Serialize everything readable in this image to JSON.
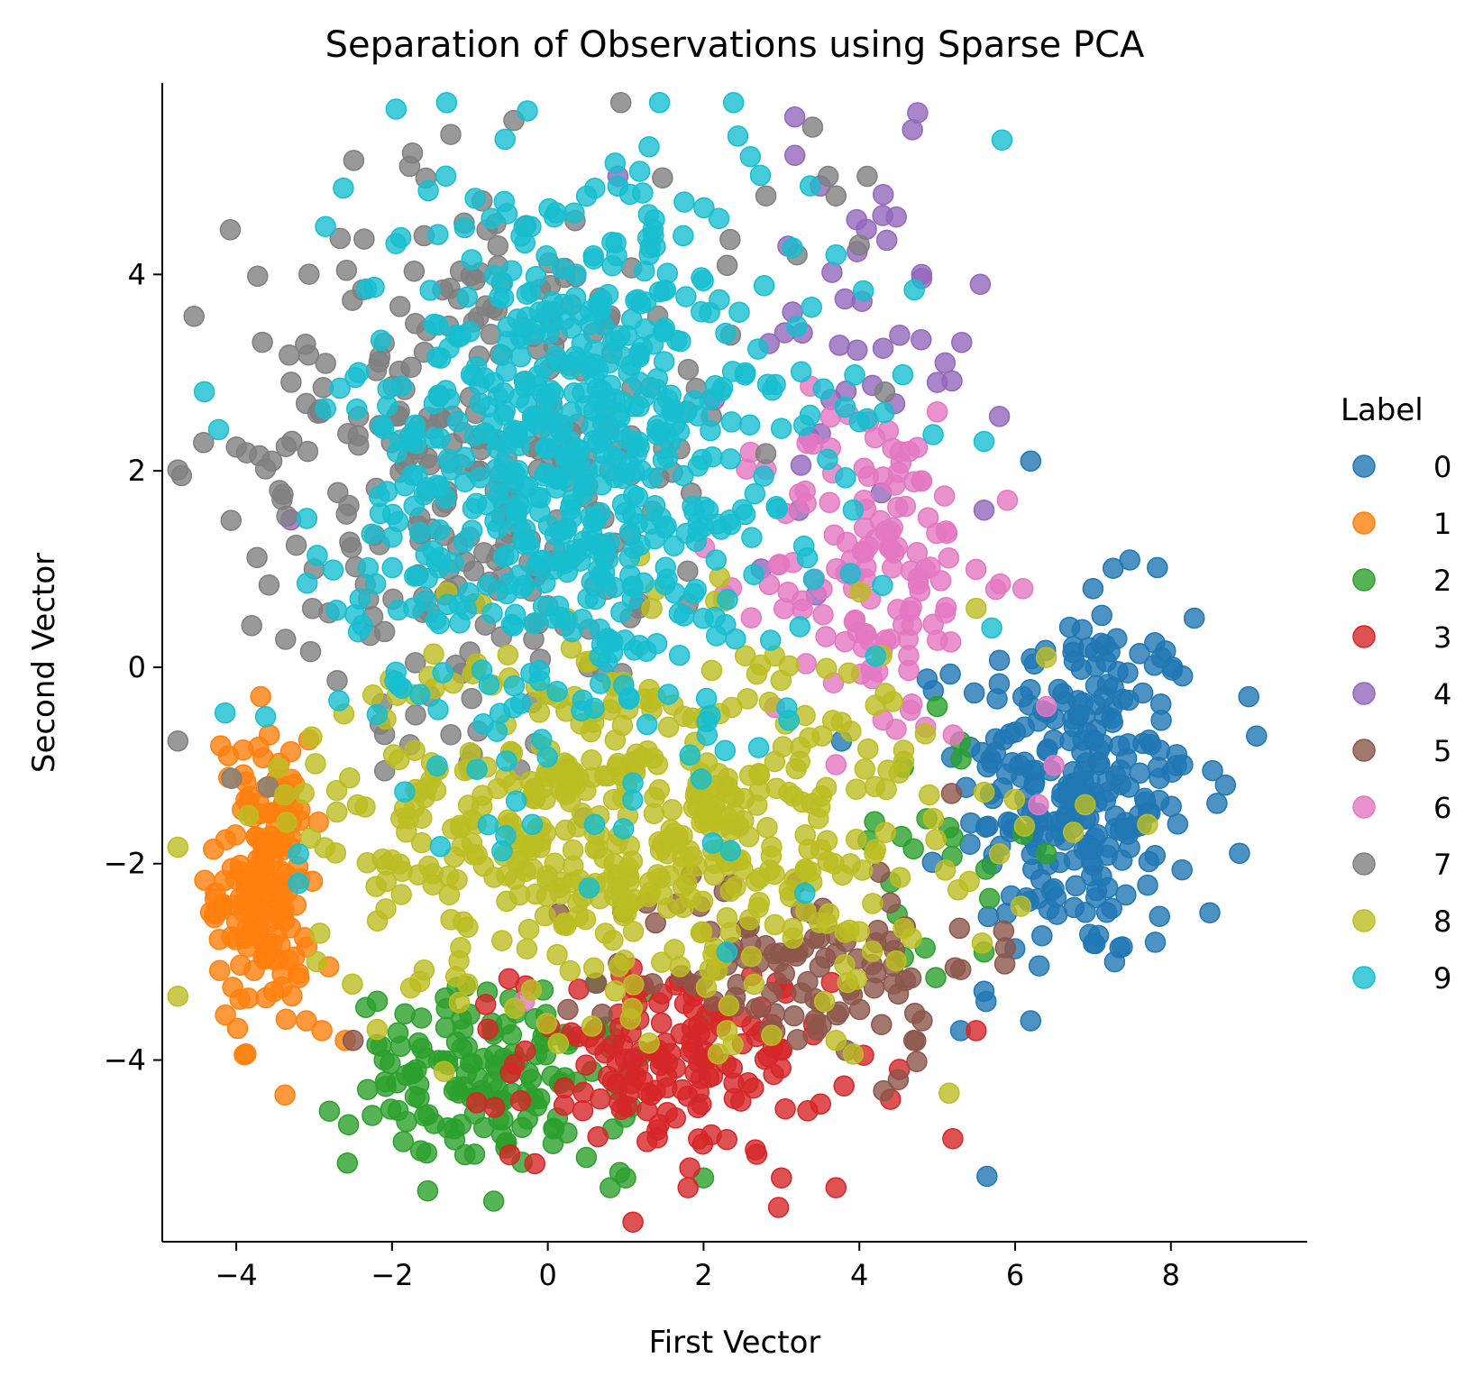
{
  "chart_data": {
    "type": "scatter",
    "title": "Separation of Observations using Sparse PCA",
    "xlabel": "First Vector",
    "ylabel": "Second Vector",
    "xlim": [
      -4.95,
      9.75
    ],
    "ylim": [
      -5.85,
      5.95
    ],
    "xticks": [
      -4,
      -2,
      0,
      2,
      4,
      6,
      8
    ],
    "yticks": [
      -4,
      -2,
      0,
      2,
      4
    ],
    "xtick_labels": [
      "−4",
      "−2",
      "0",
      "2",
      "4",
      "6",
      "8"
    ],
    "ytick_labels": [
      "−4",
      "−2",
      "0",
      "2",
      "4"
    ],
    "grid": false,
    "legend": {
      "title": "Label",
      "position": "right"
    },
    "series": [
      {
        "name": "0",
        "color": "#1f77b4",
        "clusters": [
          [
            6.8,
            -1.2,
            0.75,
            0.95,
            260
          ]
        ],
        "points": [
          [
            6.2,
            2.1
          ],
          [
            8.3,
            0.5
          ],
          [
            9.1,
            -0.7
          ],
          [
            8.7,
            -1.2
          ],
          [
            8.5,
            -2.5
          ],
          [
            7.8,
            -2.8
          ],
          [
            6.2,
            -3.6
          ],
          [
            5.6,
            -3.3
          ],
          [
            9.0,
            -0.3
          ],
          [
            7.0,
            0.8
          ],
          [
            5.3,
            -3.7
          ]
        ]
      },
      {
        "name": "1",
        "color": "#ff7f0e",
        "clusters": [
          [
            -3.65,
            -2.2,
            0.3,
            0.75,
            170
          ]
        ],
        "points": [
          [
            -2.6,
            -3.8
          ],
          [
            -3.1,
            -3.6
          ],
          [
            -4.2,
            -0.8
          ],
          [
            -2.9,
            -3.7
          ]
        ]
      },
      {
        "name": "2",
        "color": "#2ca02c",
        "clusters": [
          [
            -0.7,
            -4.2,
            0.9,
            0.45,
            150
          ],
          [
            4.9,
            -1.8,
            0.5,
            0.7,
            20
          ]
        ],
        "points": [
          [
            1.0,
            -5.2
          ],
          [
            2.0,
            -5.2
          ],
          [
            0.8,
            -5.3
          ],
          [
            -1.2,
            -4.7
          ],
          [
            -2.1,
            -4.0
          ],
          [
            5.6,
            -2.9
          ],
          [
            6.1,
            -1.7
          ]
        ]
      },
      {
        "name": "3",
        "color": "#d62728",
        "clusters": [
          [
            1.6,
            -4.0,
            1.0,
            0.5,
            160
          ]
        ],
        "points": [
          [
            3.7,
            -5.3
          ],
          [
            1.8,
            -5.3
          ],
          [
            3.0,
            -5.2
          ],
          [
            5.2,
            -4.8
          ],
          [
            5.5,
            -3.7
          ],
          [
            4.4,
            -4.4
          ]
        ]
      },
      {
        "name": "4",
        "color": "#9467bd",
        "clusters": [
          [
            4.0,
            3.2,
            0.8,
            1.0,
            40
          ]
        ],
        "points": [
          [
            4.8,
            4.0
          ],
          [
            5.1,
            3.1
          ],
          [
            4.3,
            4.6
          ],
          [
            3.5,
            4.9
          ],
          [
            5.0,
            2.9
          ],
          [
            5.6,
            1.6
          ],
          [
            -3.3,
            1.5
          ],
          [
            0.9,
            5.0
          ]
        ]
      },
      {
        "name": "5",
        "color": "#8c564b",
        "clusters": [
          [
            3.2,
            -3.0,
            1.2,
            0.5,
            100
          ]
        ],
        "points": [
          [
            4.7,
            -3.8
          ],
          [
            -2.5,
            -3.8
          ],
          [
            4.5,
            -4.2
          ]
        ]
      },
      {
        "name": "6",
        "color": "#e377c2",
        "clusters": [
          [
            4.2,
            1.0,
            0.7,
            0.9,
            130
          ]
        ],
        "points": [
          [
            5.0,
            2.6
          ],
          [
            5.9,
            1.7
          ],
          [
            6.4,
            -0.4
          ],
          [
            6.5,
            -1.0
          ],
          [
            6.3,
            -1.4
          ],
          [
            -0.3,
            -3.4
          ],
          [
            6.1,
            0.8
          ]
        ]
      },
      {
        "name": "7",
        "color": "#7f7f7f",
        "clusters": [
          [
            -0.8,
            2.2,
            1.6,
            1.4,
            320
          ]
        ],
        "points": [
          [
            3.4,
            5.5
          ],
          [
            4.1,
            5.0
          ],
          [
            3.6,
            5.0
          ],
          [
            3.7,
            4.8
          ],
          [
            2.8,
            4.8
          ],
          [
            3.2,
            4.2
          ],
          [
            4.0,
            4.3
          ],
          [
            -3.0,
            1.0
          ],
          [
            -2.1,
            3.3
          ],
          [
            -1.7,
            3.5
          ]
        ]
      },
      {
        "name": "8",
        "color": "#bcbd22",
        "clusters": [
          [
            1.0,
            -1.6,
            2.0,
            0.95,
            520
          ]
        ],
        "points": [
          [
            6.4,
            0.1
          ],
          [
            6.9,
            -1.4
          ],
          [
            7.7,
            -1.6
          ],
          [
            5.8,
            -1.9
          ],
          [
            3.7,
            -3.8
          ],
          [
            2.3,
            -3.7
          ],
          [
            5.5,
            0.6
          ]
        ]
      },
      {
        "name": "9",
        "color": "#17becf",
        "clusters": [
          [
            0.4,
            2.1,
            1.5,
            1.5,
            640
          ]
        ],
        "points": [
          [
            1.3,
            5.3
          ],
          [
            2.6,
            5.2
          ],
          [
            0.9,
            4.9
          ],
          [
            5.6,
            2.3
          ],
          [
            5.7,
            0.4
          ],
          [
            3.7,
            4.2
          ],
          [
            4.0,
            2.5
          ],
          [
            2.3,
            -2.9
          ],
          [
            3.3,
            -2.3
          ],
          [
            0.6,
            -1.6
          ],
          [
            -0.2,
            -1.6
          ],
          [
            -3.2,
            -1.9
          ],
          [
            -3.2,
            -2.2
          ]
        ]
      }
    ]
  }
}
